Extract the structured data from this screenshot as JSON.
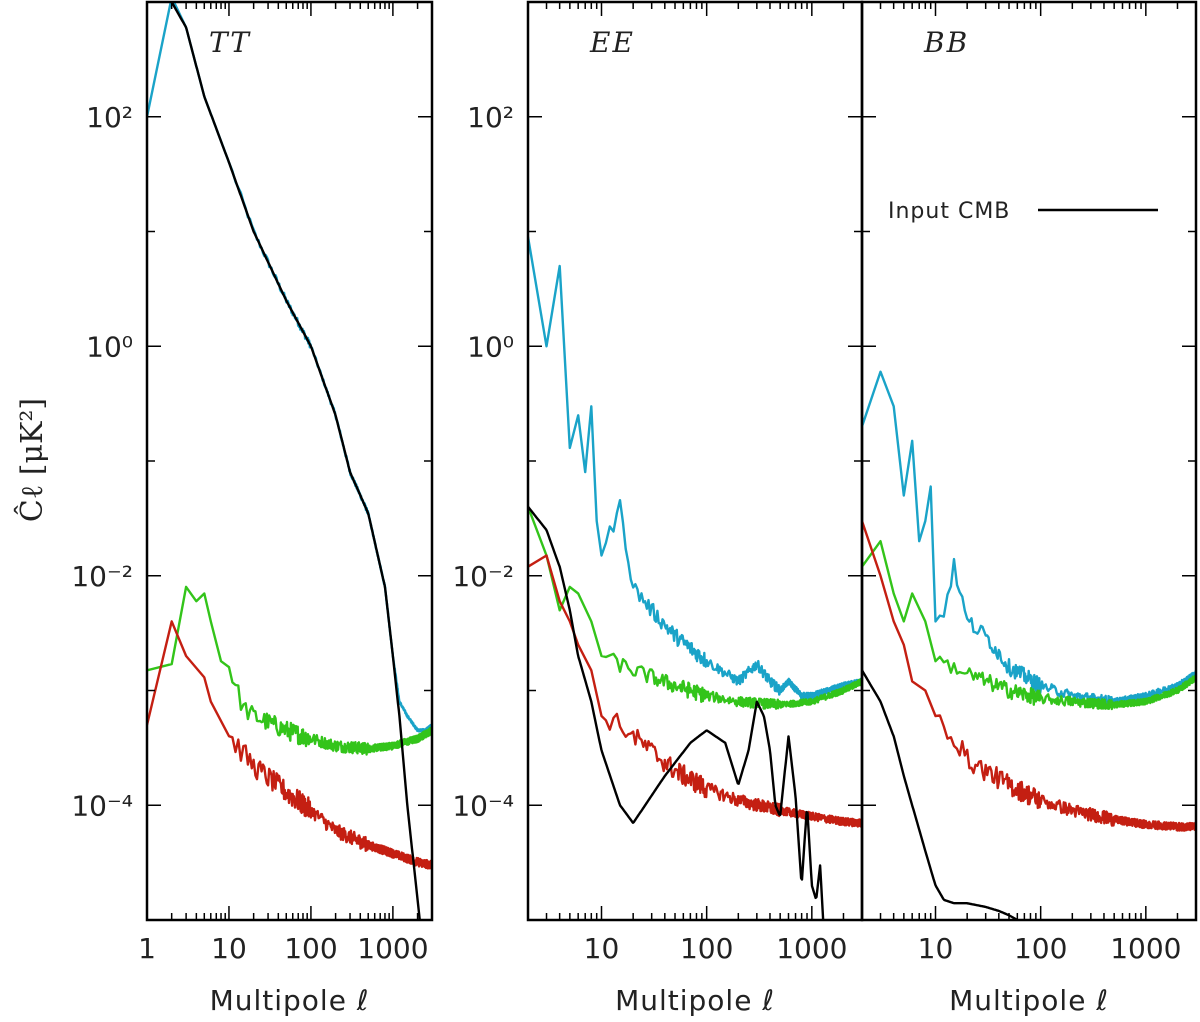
{
  "chart_data": {
    "type": "line",
    "ylabel": "Ĉℓ [μK²]",
    "xscale": "log",
    "yscale": "log",
    "colors": {
      "input": "#000000",
      "cyan": "#1aa3c8",
      "green": "#33c41a",
      "red": "#c41f12"
    },
    "legend": {
      "label": "Input CMB",
      "panel": 2,
      "placement": "upper-right"
    },
    "panels": [
      {
        "title": "TT",
        "xlabel": "Multipole ℓ",
        "xlim": [
          1,
          3000
        ],
        "ylim": [
          1e-05,
          1000
        ],
        "xticks": [
          1,
          10,
          100,
          1000
        ],
        "yticks_labels": [
          "10²",
          "10⁰",
          "10⁻²",
          "10⁻⁴"
        ],
        "yticks": [
          100,
          1,
          0.01,
          0.0001
        ],
        "series": [
          {
            "name": "Input CMB",
            "color": "input",
            "x": [
              2,
              3,
              5,
              10,
              20,
              50,
              100,
              200,
              300,
              500,
              800,
              1000,
              1200,
              1500,
              1800,
              2200
            ],
            "y": [
              1000,
              600,
              150,
              40,
              10,
              2.5,
              1.0,
              0.25,
              0.08,
              0.035,
              0.008,
              0.002,
              0.0006,
              0.0001,
              3e-05,
              8e-06
            ]
          },
          {
            "name": "Cyan",
            "color": "cyan",
            "x": [
              1,
              2,
              3,
              5,
              10,
              20,
              50,
              100,
              200,
              300,
              500,
              800,
              1000,
              1200,
              1500,
              2000,
              2500,
              3000
            ],
            "y": [
              100,
              1100,
              600,
              150,
              40,
              10,
              2.5,
              1.0,
              0.25,
              0.08,
              0.035,
              0.008,
              0.002,
              0.0008,
              0.0006,
              0.00045,
              0.00045,
              0.0005
            ],
            "noise": 0.04
          },
          {
            "name": "Green",
            "color": "green",
            "x": [
              1,
              2,
              3,
              4,
              5,
              6,
              8,
              10,
              15,
              20,
              50,
              100,
              200,
              500,
              1000,
              2000,
              3000
            ],
            "y": [
              0.0015,
              0.0017,
              0.008,
              0.006,
              0.007,
              0.004,
              0.0018,
              0.0016,
              0.0007,
              0.0006,
              0.00045,
              0.00038,
              0.00033,
              0.00031,
              0.00033,
              0.00038,
              0.00045
            ],
            "noise": 0.12
          },
          {
            "name": "Red",
            "color": "red",
            "x": [
              1,
              2,
              3,
              5,
              6,
              10,
              20,
              50,
              100,
              200,
              500,
              1000,
              2000,
              3000
            ],
            "y": [
              0.0005,
              0.004,
              0.002,
              0.0013,
              0.0008,
              0.0004,
              0.00022,
              0.00013,
              9e-05,
              6e-05,
              4.5e-05,
              3.8e-05,
              3.2e-05,
              3e-05
            ],
            "noise": 0.14
          }
        ]
      },
      {
        "title": "EE",
        "xlabel": "Multipole ℓ",
        "xlim": [
          2,
          3000
        ],
        "ylim": [
          1e-05,
          1000
        ],
        "xticks": [
          10,
          100,
          1000
        ],
        "yticks_labels": [
          "10²",
          "10⁰",
          "10⁻²",
          "10⁻⁴"
        ],
        "yticks": [
          100,
          1,
          0.01,
          0.0001
        ],
        "series": [
          {
            "name": "Input CMB",
            "color": "input",
            "x": [
              2,
              3,
              4,
              5,
              6,
              8,
              10,
              15,
              20,
              40,
              70,
              100,
              150,
              200,
              250,
              300,
              350,
              400,
              450,
              500,
              600,
              700,
              800,
              900,
              1000,
              1100,
              1200,
              1300,
              1400
            ],
            "y": [
              0.04,
              0.025,
              0.012,
              0.005,
              0.002,
              0.0008,
              0.0003,
              0.0001,
              7e-05,
              0.00018,
              0.00035,
              0.00045,
              0.00035,
              0.00015,
              0.0003,
              0.0008,
              0.0006,
              0.0003,
              0.0001,
              8e-05,
              0.0004,
              0.00012,
              2e-05,
              0.0001,
              2e-05,
              1.5e-05,
              3e-05,
              8e-06,
              2e-06
            ]
          },
          {
            "name": "Cyan",
            "color": "cyan",
            "x": [
              2,
              3,
              4,
              5,
              6,
              7,
              8,
              9,
              10,
              15,
              20,
              30,
              50,
              100,
              200,
              300,
              400,
              500,
              600,
              800,
              1000,
              2000,
              3000
            ],
            "y": [
              9,
              1,
              5,
              0.13,
              0.25,
              0.08,
              0.3,
              0.03,
              0.015,
              0.04,
              0.008,
              0.005,
              0.003,
              0.0018,
              0.0012,
              0.0017,
              0.0012,
              0.001,
              0.0012,
              0.0009,
              0.0009,
              0.0011,
              0.0012
            ],
            "noise": 0.1
          },
          {
            "name": "Green",
            "color": "green",
            "x": [
              2,
              3,
              4,
              5,
              6,
              8,
              10,
              20,
              50,
              100,
              200,
              500,
              1000,
              2000,
              3000
            ],
            "y": [
              0.04,
              0.015,
              0.005,
              0.008,
              0.007,
              0.004,
              0.002,
              0.0015,
              0.0011,
              0.0009,
              0.0008,
              0.00075,
              0.0008,
              0.001,
              0.0012
            ],
            "noise": 0.1
          },
          {
            "name": "Red",
            "color": "red",
            "x": [
              2,
              3,
              4,
              5,
              6,
              8,
              10,
              15,
              20,
              50,
              100,
              200,
              500,
              1000,
              2000,
              3000
            ],
            "y": [
              0.012,
              0.015,
              0.006,
              0.004,
              0.0025,
              0.0015,
              0.0006,
              0.0005,
              0.0004,
              0.0002,
              0.00014,
              0.00011,
              9e-05,
              8e-05,
              7.2e-05,
              7e-05
            ],
            "noise": 0.13
          }
        ]
      },
      {
        "title": "BB",
        "xlabel": "Multipole ℓ",
        "xlim": [
          2,
          3000
        ],
        "ylim": [
          1e-05,
          1000
        ],
        "xticks": [
          10,
          100,
          1000
        ],
        "yticks": [
          100,
          1,
          0.01,
          0.0001
        ],
        "series": [
          {
            "name": "Input CMB",
            "color": "input",
            "x": [
              2,
              3,
              4,
              5,
              6,
              8,
              10,
              12,
              15,
              20,
              30,
              40,
              50,
              60,
              70
            ],
            "y": [
              0.0015,
              0.0008,
              0.0004,
              0.00018,
              0.0001,
              4e-05,
              2e-05,
              1.5e-05,
              1.4e-05,
              1.4e-05,
              1.3e-05,
              1.2e-05,
              1.1e-05,
              1e-05,
              9e-06
            ]
          },
          {
            "name": "Cyan",
            "color": "cyan",
            "x": [
              2,
              3,
              4,
              5,
              6,
              7,
              8,
              9,
              10,
              12,
              15,
              20,
              30,
              50,
              100,
              200,
              500,
              1000,
              2000,
              3000
            ],
            "y": [
              0.2,
              0.6,
              0.3,
              0.05,
              0.15,
              0.02,
              0.03,
              0.06,
              0.004,
              0.005,
              0.012,
              0.004,
              0.003,
              0.0016,
              0.0011,
              0.0009,
              0.0008,
              0.0009,
              0.0011,
              0.0014
            ],
            "noise": 0.1
          },
          {
            "name": "Green",
            "color": "green",
            "x": [
              2,
              3,
              4,
              5,
              6,
              8,
              10,
              15,
              20,
              50,
              100,
              200,
              500,
              1000,
              2000,
              3000
            ],
            "y": [
              0.012,
              0.02,
              0.007,
              0.004,
              0.007,
              0.004,
              0.0018,
              0.0016,
              0.0014,
              0.001,
              0.00085,
              0.0008,
              0.00075,
              0.0008,
              0.001,
              0.0013
            ],
            "noise": 0.1
          },
          {
            "name": "Red",
            "color": "red",
            "x": [
              2,
              3,
              4,
              5,
              6,
              8,
              10,
              15,
              20,
              50,
              100,
              200,
              500,
              1000,
              2000,
              3000
            ],
            "y": [
              0.03,
              0.01,
              0.004,
              0.0025,
              0.0012,
              0.001,
              0.0006,
              0.0004,
              0.00025,
              0.00015,
              0.00011,
              9e-05,
              7.5e-05,
              6.8e-05,
              6.5e-05,
              6.5e-05
            ],
            "noise": 0.13
          }
        ]
      }
    ]
  }
}
